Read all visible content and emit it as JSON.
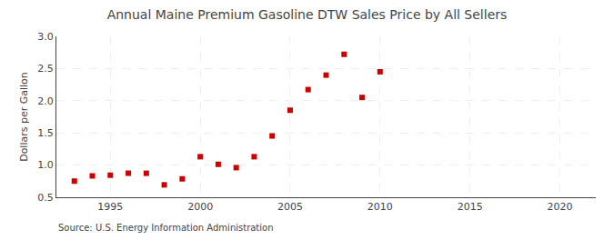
{
  "chart_data": {
    "type": "scatter",
    "title": "Annual Maine Premium Gasoline DTW Sales Price by All Sellers",
    "ylabel": "Dollars per Gallon",
    "annotations": [
      "Source: U.S. Energy Information Administration"
    ],
    "x": [
      1993,
      1994,
      1995,
      1996,
      1997,
      1998,
      1999,
      2000,
      2001,
      2002,
      2003,
      2004,
      2005,
      2006,
      2007,
      2008,
      2009,
      2010
    ],
    "values": [
      0.751,
      0.832,
      0.843,
      0.874,
      0.873,
      0.693,
      0.786,
      1.13,
      1.012,
      0.96,
      1.13,
      1.453,
      1.852,
      2.173,
      2.398,
      2.721,
      2.051,
      2.45
    ],
    "xlim": [
      1992,
      2022
    ],
    "ylim": [
      0.5,
      3.0
    ],
    "xticks": [
      1995,
      2000,
      2005,
      2010,
      2015,
      2020
    ],
    "yticks": [
      0.5,
      {
        "value": 1.0,
        "label": "1.0"
      },
      1.5,
      {
        "value": 2.0,
        "label": "2.0"
      },
      2.5,
      {
        "value": 3.0,
        "label": "3.0"
      }
    ],
    "color": "#cc0000",
    "marker": "square",
    "grid": true
  }
}
